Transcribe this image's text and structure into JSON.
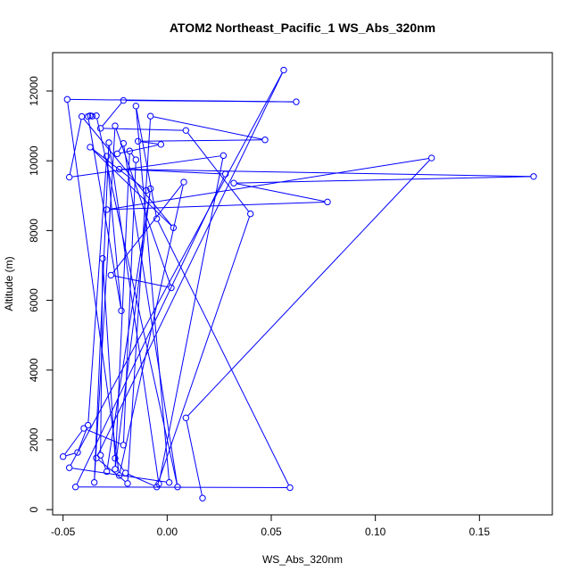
{
  "chart_data": {
    "type": "line",
    "title": "ATOM2 Northeast_Pacific_1 WS_Abs_320nm",
    "xlabel": "WS_Abs_320nm",
    "ylabel": "Altitude (m)",
    "xlim": [
      -0.055,
      0.185
    ],
    "ylim": [
      -150,
      13100
    ],
    "x_ticks": [
      -0.05,
      0.0,
      0.05,
      0.1,
      0.15
    ],
    "x_tick_labels": [
      "-0.05",
      "0.00",
      "0.05",
      "0.10",
      "0.15"
    ],
    "y_ticks": [
      0,
      2000,
      4000,
      6000,
      8000,
      10000,
      12000
    ],
    "y_tick_labels": [
      "0",
      "2000",
      "4000",
      "6000",
      "8000",
      "10000",
      "12000"
    ],
    "marker": "open-circle",
    "series": [
      {
        "color": "#0000ff",
        "points": [
          [
            0.017,
            330
          ],
          [
            0.009,
            2630
          ],
          [
            0.127,
            10080
          ],
          [
            -0.029,
            8600
          ],
          [
            0.077,
            8820
          ],
          [
            0.032,
            9360
          ],
          [
            0.176,
            9550
          ],
          [
            -0.023,
            9760
          ],
          [
            0.028,
            9620
          ],
          [
            -0.044,
            650
          ],
          [
            0.059,
            630
          ],
          [
            -0.005,
            8340
          ],
          [
            -0.015,
            11570
          ],
          [
            0.001,
            780
          ],
          [
            -0.047,
            1200
          ],
          [
            0.056,
            12600
          ],
          [
            -0.034,
            1480
          ],
          [
            -0.019,
            750
          ],
          [
            -0.008,
            11280
          ],
          [
            0.047,
            10600
          ],
          [
            -0.014,
            10560
          ],
          [
            -0.003,
            10470
          ],
          [
            -0.024,
            10200
          ],
          [
            -0.021,
            10500
          ],
          [
            0.005,
            650
          ],
          [
            -0.034,
            11290
          ],
          [
            -0.036,
            11280
          ],
          [
            -0.037,
            11290
          ],
          [
            -0.038,
            11270
          ],
          [
            -0.022,
            5700
          ],
          [
            -0.029,
            10130
          ],
          [
            -0.038,
            2420
          ],
          [
            -0.043,
            1640
          ],
          [
            -0.05,
            1520
          ],
          [
            -0.04,
            2330
          ],
          [
            -0.021,
            1850
          ],
          [
            -0.015,
            10030
          ],
          [
            -0.018,
            10280
          ],
          [
            -0.025,
            1160
          ],
          [
            -0.008,
            9200
          ],
          [
            -0.029,
            1090
          ],
          [
            -0.032,
            1560
          ],
          [
            -0.031,
            7200
          ],
          [
            -0.025,
            1470
          ],
          [
            -0.02,
            1050
          ],
          [
            -0.005,
            650
          ],
          [
            0.04,
            8480
          ],
          [
            0.009,
            10870
          ],
          [
            -0.032,
            10930
          ],
          [
            -0.021,
            11730
          ],
          [
            0.062,
            11690
          ],
          [
            -0.048,
            11760
          ],
          [
            -0.023,
            980
          ],
          [
            0.008,
            9390
          ],
          [
            -0.027,
            6720
          ],
          [
            0.002,
            6360
          ],
          [
            -0.025,
            11000
          ],
          [
            -0.035,
            780
          ],
          [
            -0.028,
            10520
          ],
          [
            -0.004,
            740
          ],
          [
            0.027,
            10150
          ],
          [
            -0.047,
            9530
          ],
          [
            -0.041,
            11270
          ],
          [
            0.003,
            8080
          ],
          [
            -0.037,
            10390
          ],
          [
            -0.01,
            9150
          ]
        ]
      }
    ]
  }
}
